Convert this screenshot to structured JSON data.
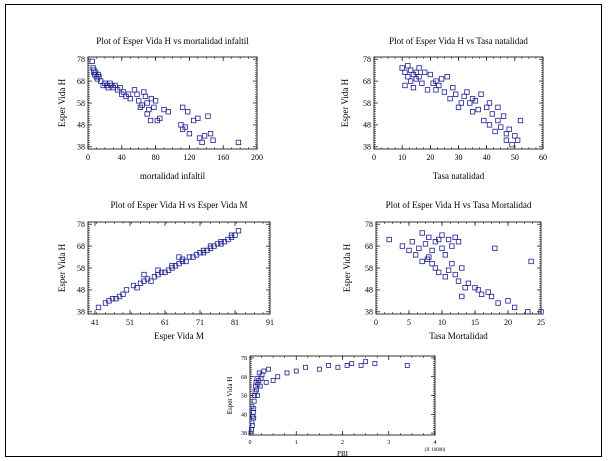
{
  "chart_data": [
    {
      "type": "scatter",
      "title": "Plot of Esper Vida H vs mortalidad infaltil",
      "xlabel": "mortalidad infaltil",
      "ylabel": "Esper Vida H",
      "xlim": [
        0,
        200
      ],
      "ylim": [
        37,
        79
      ],
      "xticks": [
        0,
        40,
        80,
        120,
        160,
        200
      ],
      "yticks": [
        38,
        48,
        58,
        68,
        78
      ],
      "grid": false,
      "marker": "open-square",
      "marker_color": "#1f1f8f",
      "points": [
        [
          5,
          77
        ],
        [
          6,
          74
        ],
        [
          7,
          73
        ],
        [
          7,
          72
        ],
        [
          8,
          71
        ],
        [
          9,
          72
        ],
        [
          10,
          70
        ],
        [
          11,
          69
        ],
        [
          12,
          71
        ],
        [
          13,
          70
        ],
        [
          15,
          68
        ],
        [
          18,
          66
        ],
        [
          20,
          67
        ],
        [
          22,
          66
        ],
        [
          24,
          65
        ],
        [
          26,
          67
        ],
        [
          28,
          66
        ],
        [
          30,
          65
        ],
        [
          32,
          66
        ],
        [
          35,
          64
        ],
        [
          38,
          65
        ],
        [
          40,
          62
        ],
        [
          42,
          63
        ],
        [
          45,
          61
        ],
        [
          48,
          62
        ],
        [
          50,
          60
        ],
        [
          55,
          64
        ],
        [
          58,
          62
        ],
        [
          60,
          59
        ],
        [
          62,
          56
        ],
        [
          64,
          57
        ],
        [
          66,
          63
        ],
        [
          68,
          61
        ],
        [
          70,
          58
        ],
        [
          70,
          53
        ],
        [
          72,
          55
        ],
        [
          74,
          50
        ],
        [
          75,
          60
        ],
        [
          78,
          56
        ],
        [
          80,
          59
        ],
        [
          82,
          50
        ],
        [
          85,
          51
        ],
        [
          90,
          55
        ],
        [
          95,
          54
        ],
        [
          110,
          48
        ],
        [
          112,
          46
        ],
        [
          112,
          56
        ],
        [
          115,
          47
        ],
        [
          118,
          54
        ],
        [
          120,
          44
        ],
        [
          125,
          50
        ],
        [
          130,
          51
        ],
        [
          132,
          42
        ],
        [
          135,
          40
        ],
        [
          138,
          43
        ],
        [
          142,
          52
        ],
        [
          145,
          44
        ],
        [
          148,
          41
        ],
        [
          178,
          40
        ]
      ]
    },
    {
      "type": "scatter",
      "title": "Plot of Esper Vida H vs Tasa natalidad",
      "xlabel": "Tasa natalidad",
      "ylabel": "Esper Vida H",
      "xlim": [
        0,
        60
      ],
      "ylim": [
        37,
        79
      ],
      "xticks": [
        0,
        10,
        20,
        30,
        40,
        50,
        60
      ],
      "yticks": [
        38,
        48,
        58,
        68,
        78
      ],
      "grid": false,
      "marker": "open-square",
      "marker_color": "#1f1f8f",
      "points": [
        [
          10,
          74
        ],
        [
          11,
          72
        ],
        [
          11,
          66
        ],
        [
          12,
          75
        ],
        [
          12,
          70
        ],
        [
          13,
          73
        ],
        [
          13,
          68
        ],
        [
          14,
          71
        ],
        [
          14,
          65
        ],
        [
          15,
          72
        ],
        [
          15,
          69
        ],
        [
          16,
          70
        ],
        [
          16,
          74
        ],
        [
          17,
          67
        ],
        [
          18,
          72
        ],
        [
          19,
          64
        ],
        [
          20,
          71
        ],
        [
          21,
          67
        ],
        [
          22,
          68
        ],
        [
          22,
          64
        ],
        [
          23,
          66
        ],
        [
          24,
          69
        ],
        [
          25,
          63
        ],
        [
          26,
          70
        ],
        [
          27,
          60
        ],
        [
          28,
          65
        ],
        [
          29,
          62
        ],
        [
          30,
          56
        ],
        [
          31,
          58
        ],
        [
          32,
          61
        ],
        [
          33,
          63
        ],
        [
          34,
          58
        ],
        [
          35,
          60
        ],
        [
          35,
          54
        ],
        [
          36,
          59
        ],
        [
          37,
          55
        ],
        [
          38,
          62
        ],
        [
          39,
          50
        ],
        [
          40,
          56
        ],
        [
          41,
          58
        ],
        [
          41,
          48
        ],
        [
          42,
          53
        ],
        [
          43,
          45
        ],
        [
          44,
          50
        ],
        [
          44,
          56
        ],
        [
          45,
          47
        ],
        [
          46,
          52
        ],
        [
          47,
          44
        ],
        [
          47,
          41
        ],
        [
          48,
          46
        ],
        [
          49,
          39
        ],
        [
          50,
          43
        ],
        [
          51,
          41
        ],
        [
          52,
          50
        ]
      ]
    },
    {
      "type": "scatter",
      "title": "Plot of Esper Vida H vs Esper Vida M",
      "xlabel": "Esper Vida M",
      "ylabel": "Esper Vida H",
      "xlim": [
        39,
        91
      ],
      "ylim": [
        37,
        79
      ],
      "xticks": [
        41,
        51,
        61,
        71,
        81,
        91
      ],
      "yticks": [
        38,
        48,
        58,
        68,
        78
      ],
      "grid": false,
      "marker": "open-square",
      "marker_color": "#1f1f8f",
      "points": [
        [
          42,
          40
        ],
        [
          44,
          42
        ],
        [
          45,
          43
        ],
        [
          46,
          44
        ],
        [
          47,
          44
        ],
        [
          48,
          45
        ],
        [
          49,
          46
        ],
        [
          50,
          48
        ],
        [
          52,
          50
        ],
        [
          53,
          49
        ],
        [
          54,
          51
        ],
        [
          55,
          52
        ],
        [
          56,
          53
        ],
        [
          57,
          52
        ],
        [
          58,
          54
        ],
        [
          59,
          55
        ],
        [
          60,
          56
        ],
        [
          61,
          56
        ],
        [
          62,
          57
        ],
        [
          63,
          58
        ],
        [
          63,
          59
        ],
        [
          64,
          59
        ],
        [
          65,
          60
        ],
        [
          66,
          61
        ],
        [
          66,
          62
        ],
        [
          67,
          61
        ],
        [
          68,
          63
        ],
        [
          69,
          63
        ],
        [
          70,
          64
        ],
        [
          71,
          65
        ],
        [
          72,
          65
        ],
        [
          72,
          66
        ],
        [
          73,
          66
        ],
        [
          74,
          67
        ],
        [
          74,
          68
        ],
        [
          75,
          68
        ],
        [
          76,
          69
        ],
        [
          77,
          69
        ],
        [
          77,
          70
        ],
        [
          78,
          70
        ],
        [
          79,
          71
        ],
        [
          80,
          72
        ],
        [
          80,
          73
        ],
        [
          81,
          73
        ],
        [
          82,
          75
        ],
        [
          55,
          55
        ],
        [
          59,
          57
        ],
        [
          65,
          63
        ]
      ]
    },
    {
      "type": "scatter",
      "title": "Plot of Esper Vida H vs Tasa Mortalidad",
      "xlabel": "Tasa Mortalidad",
      "ylabel": "Esper Vida H",
      "xlim": [
        0,
        25
      ],
      "ylim": [
        37,
        79
      ],
      "xticks": [
        0,
        5,
        10,
        15,
        20,
        25
      ],
      "yticks": [
        38,
        48,
        58,
        68,
        78
      ],
      "grid": false,
      "marker": "open-square",
      "marker_color": "#1f1f8f",
      "points": [
        [
          2,
          71
        ],
        [
          4,
          68
        ],
        [
          5,
          66
        ],
        [
          5.5,
          70
        ],
        [
          6,
          64
        ],
        [
          6.5,
          67
        ],
        [
          7,
          74
        ],
        [
          7,
          61
        ],
        [
          7.5,
          69
        ],
        [
          7.8,
          62
        ],
        [
          8,
          72
        ],
        [
          8,
          63
        ],
        [
          8.5,
          60
        ],
        [
          8.5,
          66
        ],
        [
          9,
          58
        ],
        [
          9,
          70
        ],
        [
          9.5,
          71
        ],
        [
          9.5,
          56
        ],
        [
          10,
          67
        ],
        [
          10,
          73
        ],
        [
          10.5,
          54
        ],
        [
          10.5,
          64
        ],
        [
          11,
          71
        ],
        [
          11,
          57
        ],
        [
          11.5,
          68
        ],
        [
          11.5,
          60
        ],
        [
          12,
          72
        ],
        [
          12,
          55
        ],
        [
          12.5,
          70
        ],
        [
          12.5,
          52
        ],
        [
          13,
          58
        ],
        [
          13,
          45
        ],
        [
          13.5,
          49
        ],
        [
          14,
          51
        ],
        [
          15,
          49
        ],
        [
          15.5,
          48
        ],
        [
          16,
          46
        ],
        [
          17,
          47
        ],
        [
          17.5,
          45
        ],
        [
          18,
          67
        ],
        [
          18.5,
          42
        ],
        [
          20,
          43
        ],
        [
          21,
          40
        ],
        [
          23,
          38
        ],
        [
          23.5,
          61
        ],
        [
          25,
          38
        ]
      ]
    },
    {
      "type": "scatter",
      "title": "",
      "xlabel": "PBI",
      "ylabel": "Esper Vida H",
      "xlim": [
        0,
        40000
      ],
      "ylim": [
        37,
        79
      ],
      "xticks": [
        0,
        10000,
        20000,
        30000,
        40000
      ],
      "xtick_labels": [
        "0",
        "1",
        "2",
        "3",
        "4"
      ],
      "x_multiplier": "(X 10000)",
      "yticks": [
        38,
        48,
        58,
        68,
        78
      ],
      "grid": false,
      "marker": "open-square",
      "marker_color": "#1f1f8f",
      "points": [
        [
          200,
          38
        ],
        [
          300,
          40
        ],
        [
          400,
          44
        ],
        [
          500,
          42
        ],
        [
          600,
          47
        ],
        [
          700,
          49
        ],
        [
          800,
          51
        ],
        [
          900,
          55
        ],
        [
          1000,
          58
        ],
        [
          1100,
          60
        ],
        [
          1200,
          63
        ],
        [
          1300,
          65
        ],
        [
          1400,
          61
        ],
        [
          1500,
          67
        ],
        [
          1700,
          64
        ],
        [
          1900,
          66
        ],
        [
          2000,
          70
        ],
        [
          2200,
          63
        ],
        [
          2400,
          67
        ],
        [
          2600,
          69
        ],
        [
          3000,
          71
        ],
        [
          3500,
          65
        ],
        [
          4000,
          72
        ],
        [
          5000,
          66
        ],
        [
          6000,
          68
        ],
        [
          8000,
          70
        ],
        [
          10000,
          71
        ],
        [
          12000,
          73
        ],
        [
          15000,
          72
        ],
        [
          17000,
          74
        ],
        [
          19000,
          73
        ],
        [
          21000,
          74
        ],
        [
          22000,
          75
        ],
        [
          24000,
          74
        ],
        [
          25000,
          76
        ],
        [
          27000,
          75
        ],
        [
          34000,
          74
        ],
        [
          400,
          52
        ],
        [
          800,
          46
        ],
        [
          1600,
          58
        ]
      ]
    }
  ]
}
